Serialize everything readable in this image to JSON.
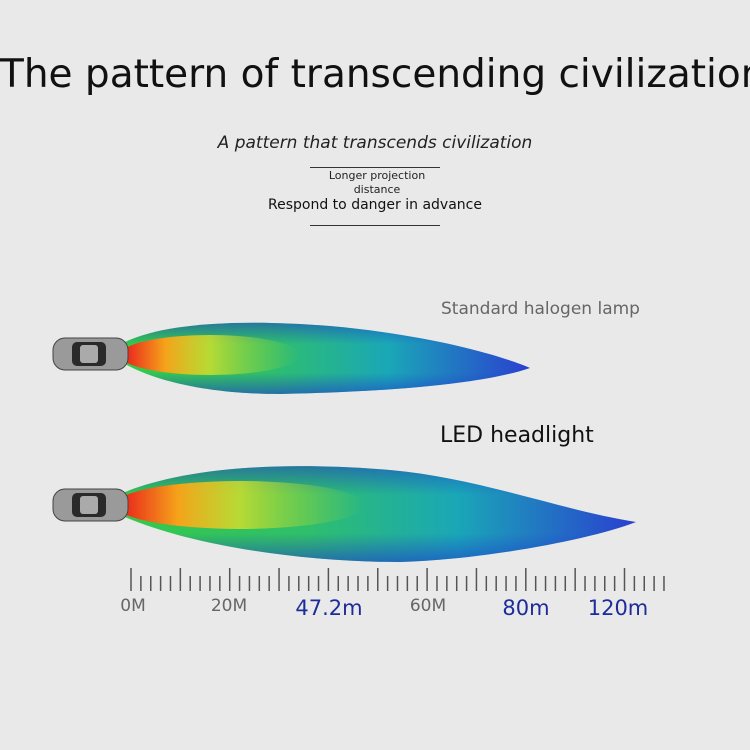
{
  "header": {
    "title": "The pattern of transcending civilization",
    "subtitle": "A pattern that transcends civilization",
    "note_lines": [
      "Longer projection",
      "distance"
    ],
    "note": "Respond to danger in advance"
  },
  "beams": [
    {
      "label": "Standard halogen lamp"
    },
    {
      "label": "LED headlight"
    }
  ],
  "scale": {
    "labels": [
      "0M",
      "20M",
      "47.2m",
      "60M",
      "80m",
      "120m"
    ]
  }
}
